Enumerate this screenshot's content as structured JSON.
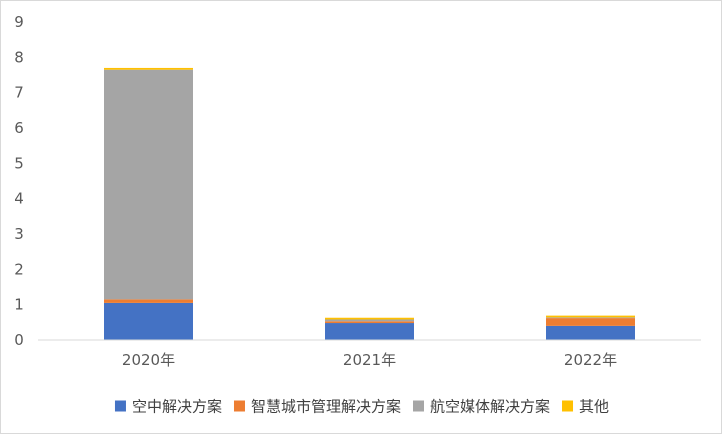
{
  "chart_data": {
    "type": "bar",
    "stacked": true,
    "categories": [
      "2020年",
      "2021年",
      "2022年"
    ],
    "series": [
      {
        "name": "空中解决方案",
        "color": "#4472c4",
        "values": [
          1.05,
          0.48,
          0.4
        ]
      },
      {
        "name": "智慧城市管理解决方案",
        "color": "#ed7d31",
        "values": [
          0.1,
          0.05,
          0.22
        ]
      },
      {
        "name": "航空媒体解决方案",
        "color": "#a5a5a5",
        "values": [
          6.5,
          0.05,
          0.02
        ]
      },
      {
        "name": "其他",
        "color": "#ffc000",
        "values": [
          0.05,
          0.05,
          0.05
        ]
      }
    ],
    "ylim": [
      0,
      9
    ],
    "yticks": [
      "0",
      "1",
      "2",
      "3",
      "4",
      "5",
      "6",
      "7",
      "8",
      "9"
    ],
    "title": "",
    "xlabel": "",
    "ylabel": "",
    "grid": false,
    "legend": "bottom"
  }
}
